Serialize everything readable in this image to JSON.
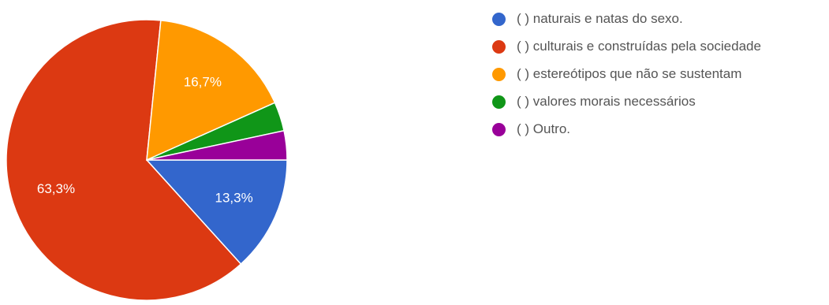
{
  "chart_data": {
    "type": "pie",
    "title": "",
    "start_angle_deg": 90,
    "direction": "clockwise",
    "legend_position": "right",
    "slices": [
      {
        "label": "( ) naturais e natas do sexo.",
        "value": 13.3,
        "display": "13,3%",
        "color": "#3366cc"
      },
      {
        "label": "( ) culturais e construídas pela sociedade",
        "value": 63.3,
        "display": "63,3%",
        "color": "#dc3912"
      },
      {
        "label": "( ) estereótipos que não se sustentam",
        "value": 16.7,
        "display": "16,7%",
        "color": "#ff9900"
      },
      {
        "label": "( ) valores morais necessários",
        "value": 3.35,
        "display": "",
        "color": "#109618"
      },
      {
        "label": "( ) Outro.",
        "value": 3.35,
        "display": "",
        "color": "#990099"
      }
    ]
  }
}
